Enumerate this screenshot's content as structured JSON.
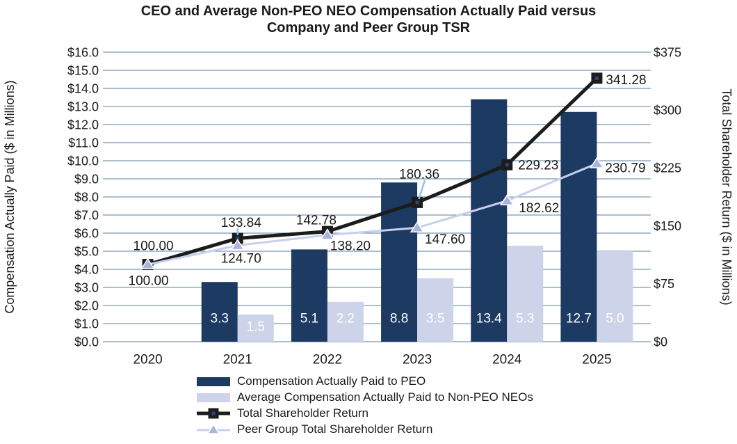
{
  "chart_data": {
    "type": "combo-bar-line",
    "title": "CEO and Average Non-PEO NEO Compensation Actually Paid versus Company and Peer Group TSR",
    "title_lines": [
      "CEO and Average Non-PEO NEO Compensation Actually Paid versus",
      "Company and Peer Group TSR"
    ],
    "categories": [
      "2020",
      "2021",
      "2022",
      "2023",
      "2024",
      "2025"
    ],
    "bar_series": [
      {
        "name": "Compensation Actually Paid to PEO",
        "color": "#1d3a63",
        "axis": "left",
        "values": [
          null,
          3.3,
          5.1,
          8.8,
          13.4,
          12.7
        ],
        "labels": [
          "",
          "3.3",
          "5.1",
          "8.8",
          "13.4",
          "12.7"
        ],
        "label_color": "#ffffff"
      },
      {
        "name": "Average Compensation Actually Paid to Non-PEO NEOs",
        "color": "#cdd3e8",
        "axis": "left",
        "values": [
          null,
          1.5,
          2.2,
          3.5,
          5.3,
          5.0
        ],
        "labels": [
          "",
          "1.5",
          "2.2",
          "3.5",
          "5.3",
          "5.0"
        ],
        "label_color": "#ffffff"
      }
    ],
    "line_series": [
      {
        "name": "Total Shareholder Return",
        "color": "#1c1c1c",
        "marker": "square",
        "marker_color": "#1c1c1c",
        "marker_dot_color": "#24477e",
        "axis": "right",
        "values": [
          100.0,
          133.84,
          142.78,
          180.36,
          229.23,
          341.28
        ],
        "labels": [
          "100.00",
          "133.84",
          "142.78",
          "180.36",
          "229.23",
          "341.28"
        ]
      },
      {
        "name": "Peer Group Total Shareholder Return",
        "color": "#c7d0ea",
        "marker": "triangle",
        "marker_color": "#a9b6db",
        "axis": "right",
        "values": [
          100.0,
          124.7,
          138.2,
          147.6,
          182.62,
          230.79
        ],
        "labels": [
          "100.00",
          "124.70",
          "138.20",
          "147.60",
          "182.62",
          "230.79"
        ]
      }
    ],
    "left_axis": {
      "title": "Compensation Actually Paid ($ in Millions)",
      "min": 0,
      "max": 16,
      "step": 1,
      "tick_labels": [
        "$0.0",
        "$1.0",
        "$2.0",
        "$3.0",
        "$4.0",
        "$5.0",
        "$6.0",
        "$7.0",
        "$8.0",
        "$9.0",
        "$10.0",
        "$11.0",
        "$12.0",
        "$13.0",
        "$14.0",
        "$15.0",
        "$16.0"
      ]
    },
    "right_axis": {
      "title": "Total Shareholder Return ($ in Millions)",
      "min": 0,
      "max": 375,
      "step": 75,
      "tick_labels": [
        "$0",
        "$75",
        "$150",
        "$225",
        "$300",
        "$375"
      ]
    },
    "grid": {
      "horizontal": true,
      "vertical": false,
      "color": "#5580a5"
    },
    "legend": {
      "position": "bottom-left"
    },
    "colors": {
      "text": "#1a1a1a",
      "leader_line": "#8fc0e8",
      "background": "#ffffff"
    }
  }
}
